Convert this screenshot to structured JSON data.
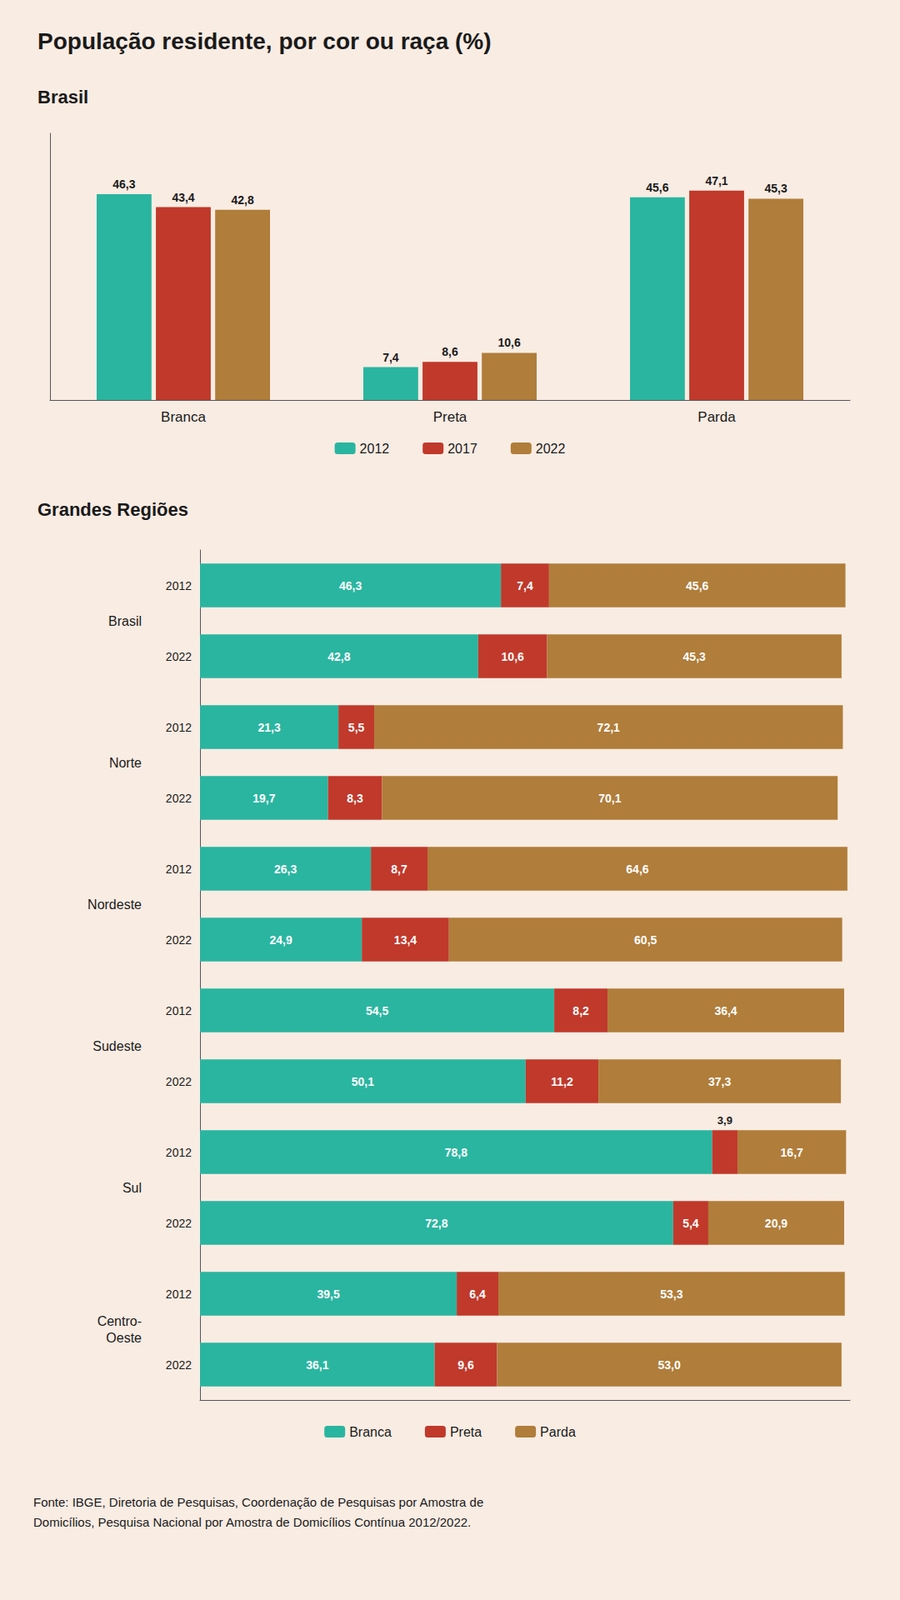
{
  "chart_data": [
    {
      "type": "bar",
      "title": "População residente, por cor ou raça (%)",
      "subtitle": "Brasil",
      "categories": [
        "Branca",
        "Preta",
        "Parda"
      ],
      "series": [
        {
          "name": "2012",
          "color": "#2ab5a0",
          "values": [
            46.3,
            7.4,
            45.6
          ],
          "value_labels": [
            "46,3",
            "7,4",
            "45,6"
          ]
        },
        {
          "name": "2017",
          "color": "#c0392b",
          "values": [
            43.4,
            8.6,
            47.1
          ],
          "value_labels": [
            "43,4",
            "8,6",
            "47,1"
          ]
        },
        {
          "name": "2022",
          "color": "#b07d3a",
          "values": [
            42.8,
            10.6,
            45.3
          ],
          "value_labels": [
            "42,8",
            "10,6",
            "45,3"
          ]
        }
      ],
      "ylim": [
        0,
        60
      ],
      "data_labels": true,
      "tick_labels": "x",
      "grid": false,
      "legend": "bottom"
    },
    {
      "type": "bar",
      "title": "Grandes Regiões",
      "orientation": "horizontal",
      "stacked": true,
      "groups": [
        "Brasil",
        "Norte",
        "Nordeste",
        "Sudeste",
        "Sul",
        "Centro-\nOeste"
      ],
      "categories": [
        "2012",
        "2022",
        "2012",
        "2022",
        "2012",
        "2022",
        "2012",
        "2022",
        "2012",
        "2022",
        "2012",
        "2022"
      ],
      "series": [
        {
          "name": "Branca",
          "color": "#2ab5a0",
          "values": [
            46.3,
            42.8,
            21.3,
            19.7,
            26.3,
            24.9,
            54.5,
            50.1,
            78.8,
            72.8,
            39.5,
            36.1
          ],
          "value_labels": [
            "46,3",
            "42,8",
            "21,3",
            "19,7",
            "26,3",
            "24,9",
            "54,5",
            "50,1",
            "78,8",
            "72,8",
            "39,5",
            "36,1"
          ]
        },
        {
          "name": "Preta",
          "color": "#c0392b",
          "values": [
            7.4,
            10.6,
            5.5,
            8.3,
            8.7,
            13.4,
            8.2,
            11.2,
            3.9,
            5.4,
            6.4,
            9.6
          ],
          "value_labels": [
            "7,4",
            "10,6",
            "5,5",
            "8,3",
            "8,7",
            "13,4",
            "8,2",
            "11,2",
            "3,9",
            "5,4",
            "6,4",
            "9,6"
          ]
        },
        {
          "name": "Parda",
          "color": "#b07d3a",
          "values": [
            45.6,
            45.3,
            72.1,
            70.1,
            64.6,
            60.5,
            36.4,
            37.3,
            16.7,
            20.9,
            53.3,
            53.0
          ],
          "value_labels": [
            "45,6",
            "45,3",
            "72,1",
            "70,1",
            "64,6",
            "60,5",
            "36,4",
            "37,3",
            "16,7",
            "20,9",
            "53,3",
            "53,0"
          ]
        }
      ],
      "xlim": [
        0,
        100
      ],
      "data_labels": true,
      "tick_labels": "y",
      "grid": false,
      "legend": "bottom",
      "annotations": [
        "Fonte: IBGE, Diretoria de Pesquisas, Coordenação de Pesquisas por Amostra de\nDomicílios, Pesquisa Nacional por Amostra de Domicílios Contínua 2012/2022."
      ]
    }
  ]
}
